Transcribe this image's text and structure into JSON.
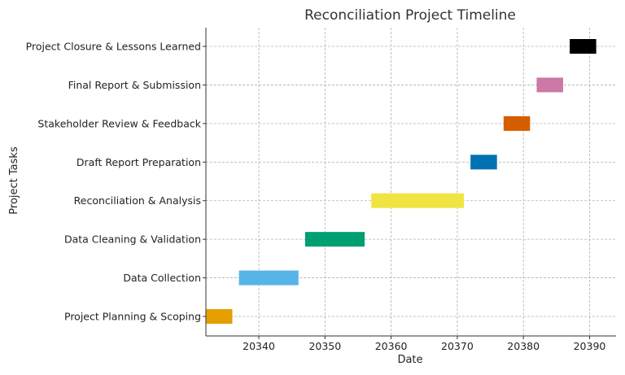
{
  "chart_data": {
    "type": "bar",
    "orientation": "horizontal",
    "title": "Reconciliation Project Timeline",
    "xlabel": "Date",
    "ylabel": "Project Tasks",
    "xlim": [
      20332,
      20394
    ],
    "x_ticks": [
      20340,
      20350,
      20360,
      20370,
      20380,
      20390
    ],
    "grid": true,
    "tasks": [
      {
        "name": "Project Planning & Scoping",
        "start": 20332,
        "end": 20336,
        "color": "#E69F00"
      },
      {
        "name": "Data Collection",
        "start": 20337,
        "end": 20346,
        "color": "#56B4E9"
      },
      {
        "name": "Data Cleaning & Validation",
        "start": 20347,
        "end": 20356,
        "color": "#009E73"
      },
      {
        "name": "Reconciliation & Analysis",
        "start": 20357,
        "end": 20371,
        "color": "#F0E442"
      },
      {
        "name": "Draft Report Preparation",
        "start": 20372,
        "end": 20376,
        "color": "#0072B2"
      },
      {
        "name": "Stakeholder Review & Feedback",
        "start": 20377,
        "end": 20381,
        "color": "#D55E00"
      },
      {
        "name": "Final Report & Submission",
        "start": 20382,
        "end": 20386,
        "color": "#CC79A7"
      },
      {
        "name": "Project Closure & Lessons Learned",
        "start": 20387,
        "end": 20391,
        "color": "#000000"
      }
    ]
  }
}
